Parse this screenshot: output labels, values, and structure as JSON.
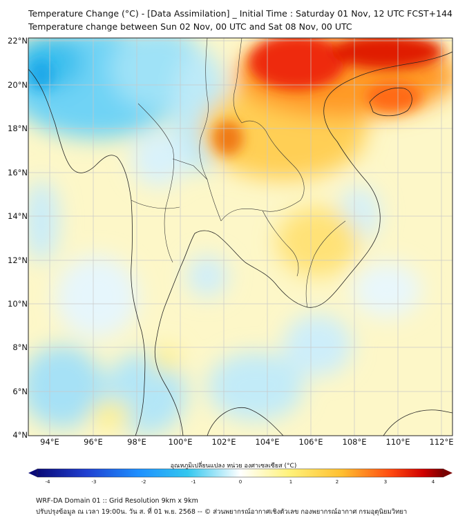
{
  "header": {
    "title_line1": "Temperature Change (°C) - [Data Assimilation] _ Initial Time : Saturday 01 Nov, 12 UTC FCST+144",
    "title_line2": "Temperature change between Sun 02 Nov, 00 UTC and Sat 08 Nov, 00 UTC"
  },
  "map": {
    "lat_labels": [
      "22°N",
      "20°N",
      "18°N",
      "16°N",
      "14°N",
      "12°N",
      "10°N",
      "8°N",
      "6°N",
      "4°N"
    ],
    "lon_labels": [
      "94°E",
      "96°E",
      "98°E",
      "100°E",
      "102°E",
      "104°E",
      "106°E",
      "108°E",
      "110°E",
      "112°E"
    ],
    "lat_range": [
      4,
      22
    ],
    "lon_range": [
      93,
      112.5
    ]
  },
  "colorbar": {
    "title": "อุณหภูมิเปลี่ยนแปลง หน่วย องศาเซลเซียส (°C)",
    "ticks": [
      "-4",
      "-3",
      "-2",
      "-1",
      "0",
      "1",
      "2",
      "3",
      "4"
    ],
    "range": [
      -4,
      4
    ],
    "colors": [
      "#0a0a78",
      "#1f3fd0",
      "#1e90ff",
      "#33c7ef",
      "#ffffff",
      "#fff27a",
      "#ffbf30",
      "#ff6a10",
      "#e00000",
      "#7a0000"
    ]
  },
  "footer": {
    "line1": "WRF-DA Domain 01 :: Grid Resolution 9km x 9km",
    "line2": "ปรับปรุงข้อมูล ณ เวลา 19:00น. วัน ส. ที่ 01 พ.ย. 2568 -- © ส่วนพยากรณ์อากาศเชิงตัวเลข กองพยากรณ์อากาศ กรมอุตุนิยมวิทยา"
  }
}
